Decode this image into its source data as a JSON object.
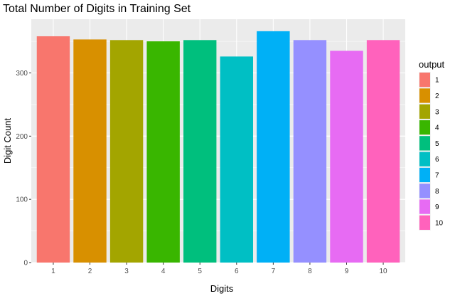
{
  "chart_data": {
    "type": "bar",
    "title": "Total Number of Digits in Training Set",
    "xlabel": "Digits",
    "ylabel": "Digit Count",
    "categories": [
      "1",
      "2",
      "3",
      "4",
      "5",
      "6",
      "7",
      "8",
      "9",
      "10"
    ],
    "values": [
      358,
      353,
      352,
      350,
      352,
      326,
      366,
      352,
      335,
      352
    ],
    "colors": [
      "#F8766D",
      "#D89000",
      "#A3A500",
      "#39B600",
      "#00BF7D",
      "#00BFC4",
      "#00B0F6",
      "#9590FF",
      "#E76BF3",
      "#FF62BC"
    ],
    "ylim": [
      0,
      385
    ],
    "yticks": [
      0,
      100,
      200,
      300
    ],
    "grid": true,
    "panel_background": "#EBEBEB",
    "legend": {
      "title": "output",
      "position": "right",
      "entries": [
        "1",
        "2",
        "3",
        "4",
        "5",
        "6",
        "7",
        "8",
        "9",
        "10"
      ]
    }
  }
}
